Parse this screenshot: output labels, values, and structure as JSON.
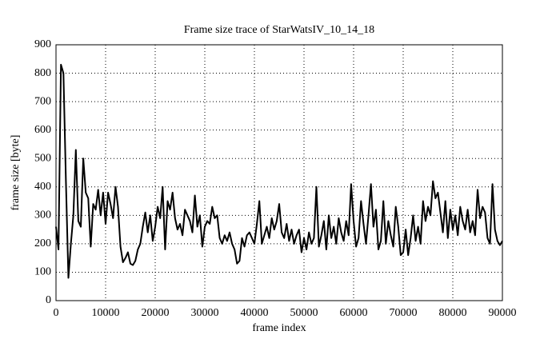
{
  "chart_data": {
    "type": "line",
    "title": "Frame size trace of StarWatsIV_10_14_18",
    "x_label": "frame index",
    "y_label": "frame size [byte]",
    "xlim": [
      0,
      90000
    ],
    "xticks": [
      0,
      10000,
      20000,
      30000,
      40000,
      50000,
      60000,
      70000,
      80000,
      90000
    ],
    "ylim": [
      0,
      900
    ],
    "yticks": [
      0,
      100,
      200,
      300,
      400,
      500,
      600,
      700,
      800,
      900
    ],
    "grid": true,
    "x": [
      0,
      500,
      1000,
      1500,
      2000,
      2500,
      3000,
      3500,
      4000,
      4500,
      5000,
      5500,
      6000,
      6500,
      7000,
      7500,
      8000,
      8500,
      9000,
      9500,
      10000,
      10500,
      11000,
      11500,
      12000,
      12500,
      13000,
      13500,
      14000,
      14500,
      15000,
      15500,
      16000,
      16500,
      17000,
      17500,
      18000,
      18500,
      19000,
      19500,
      20000,
      20500,
      21000,
      21500,
      22000,
      22500,
      23000,
      23500,
      24000,
      24500,
      25000,
      25500,
      26000,
      26500,
      27000,
      27500,
      28000,
      28500,
      29000,
      29500,
      30000,
      30500,
      31000,
      31500,
      32000,
      32500,
      33000,
      33500,
      34000,
      34500,
      35000,
      35500,
      36000,
      36500,
      37000,
      37500,
      38000,
      38500,
      39000,
      39500,
      40000,
      40500,
      41000,
      41500,
      42000,
      42500,
      43000,
      43500,
      44000,
      44500,
      45000,
      45500,
      46000,
      46500,
      47000,
      47500,
      48000,
      48500,
      49000,
      49500,
      50000,
      50500,
      51000,
      51500,
      52000,
      52500,
      53000,
      53500,
      54000,
      54500,
      55000,
      55500,
      56000,
      56500,
      57000,
      57500,
      58000,
      58500,
      59000,
      59500,
      60000,
      60500,
      61000,
      61500,
      62000,
      62500,
      63000,
      63500,
      64000,
      64500,
      65000,
      65500,
      66000,
      66500,
      67000,
      67500,
      68000,
      68500,
      69000,
      69500,
      70000,
      70500,
      71000,
      71500,
      72000,
      72500,
      73000,
      73500,
      74000,
      74500,
      75000,
      75500,
      76000,
      76500,
      77000,
      77500,
      78000,
      78500,
      79000,
      79500,
      80000,
      80500,
      81000,
      81500,
      82000,
      82500,
      83000,
      83500,
      84000,
      84500,
      85000,
      85500,
      86000,
      86500,
      87000,
      87500,
      88000,
      88500,
      89000,
      89500,
      90000
    ],
    "series": [
      {
        "color": "#000000",
        "values": [
          260,
          180,
          830,
          800,
          420,
          80,
          200,
          300,
          530,
          280,
          260,
          500,
          380,
          360,
          190,
          340,
          320,
          390,
          300,
          380,
          270,
          380,
          340,
          290,
          400,
          330,
          190,
          135,
          150,
          170,
          130,
          125,
          140,
          180,
          200,
          260,
          310,
          240,
          300,
          210,
          260,
          330,
          290,
          400,
          180,
          350,
          320,
          380,
          290,
          250,
          270,
          230,
          320,
          300,
          280,
          240,
          370,
          260,
          300,
          190,
          260,
          280,
          270,
          330,
          290,
          300,
          220,
          200,
          230,
          210,
          240,
          200,
          180,
          130,
          140,
          220,
          190,
          230,
          240,
          220,
          200,
          270,
          350,
          200,
          230,
          260,
          220,
          290,
          250,
          280,
          340,
          240,
          220,
          270,
          210,
          250,
          200,
          230,
          250,
          170,
          220,
          180,
          240,
          200,
          220,
          400,
          190,
          230,
          280,
          180,
          300,
          220,
          260,
          200,
          290,
          240,
          210,
          280,
          230,
          410,
          280,
          190,
          220,
          350,
          270,
          200,
          300,
          410,
          260,
          320,
          180,
          210,
          350,
          200,
          280,
          230,
          190,
          330,
          260,
          160,
          170,
          250,
          160,
          220,
          300,
          210,
          260,
          200,
          350,
          280,
          330,
          300,
          420,
          360,
          380,
          310,
          240,
          350,
          220,
          320,
          250,
          300,
          230,
          330,
          280,
          250,
          320,
          240,
          280,
          230,
          390,
          290,
          330,
          310,
          220,
          200,
          410,
          250,
          210,
          195,
          210
        ]
      }
    ]
  }
}
